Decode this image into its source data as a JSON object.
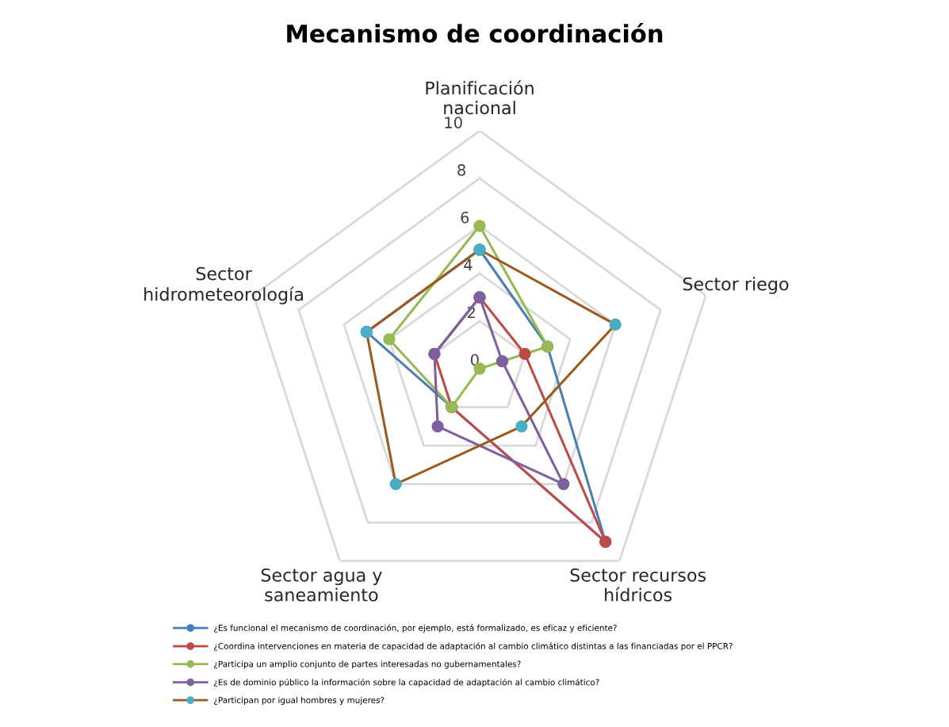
{
  "chart_data": {
    "type": "radar",
    "title": "Mecanismo de coordinación",
    "categories": [
      "Planificación nacional",
      "Sector riego",
      "Sector recursos hídricos",
      "Sector agua y saneamiento",
      "Sector hidrometeorología"
    ],
    "series": [
      {
        "name": "¿Es funcional el mecanismo de coordinación, por ejemplo, está formalizado, es eficaz y eficiente?",
        "color": "#4a7ebb",
        "values": [
          5,
          3,
          9,
          2,
          5
        ]
      },
      {
        "name": "¿Coordina intervenciones en materia de capacidad de adaptación al cambio climático distintas a las financiadas por el PPCR?",
        "color": "#be4b48",
        "values": [
          3,
          2,
          9,
          2,
          2
        ]
      },
      {
        "name": "¿Participa un amplio conjunto de partes interesadas no gubernamentales?",
        "color": "#98b954",
        "values": [
          6,
          3,
          0,
          2,
          4
        ]
      },
      {
        "name": "¿Es de dominio público la información sobre la capacidad de adaptación al cambio climático?",
        "color": "#7d60a0",
        "values": [
          3,
          1,
          6,
          3,
          2
        ]
      },
      {
        "name": "¿Participan por igual hombres y mujeres?",
        "color": "#9c5a1e",
        "colors": [
          "#4bacc6",
          "#4bacc6",
          "#4bacc6",
          "#4bacc6",
          "#4bacc6"
        ],
        "values": [
          5,
          6,
          3,
          6,
          5
        ]
      }
    ],
    "ylim": [
      0,
      10
    ],
    "yticks": [
      0,
      2,
      4,
      6,
      8,
      10
    ],
    "grid": true,
    "legend": "bottom",
    "marker": "circle"
  }
}
